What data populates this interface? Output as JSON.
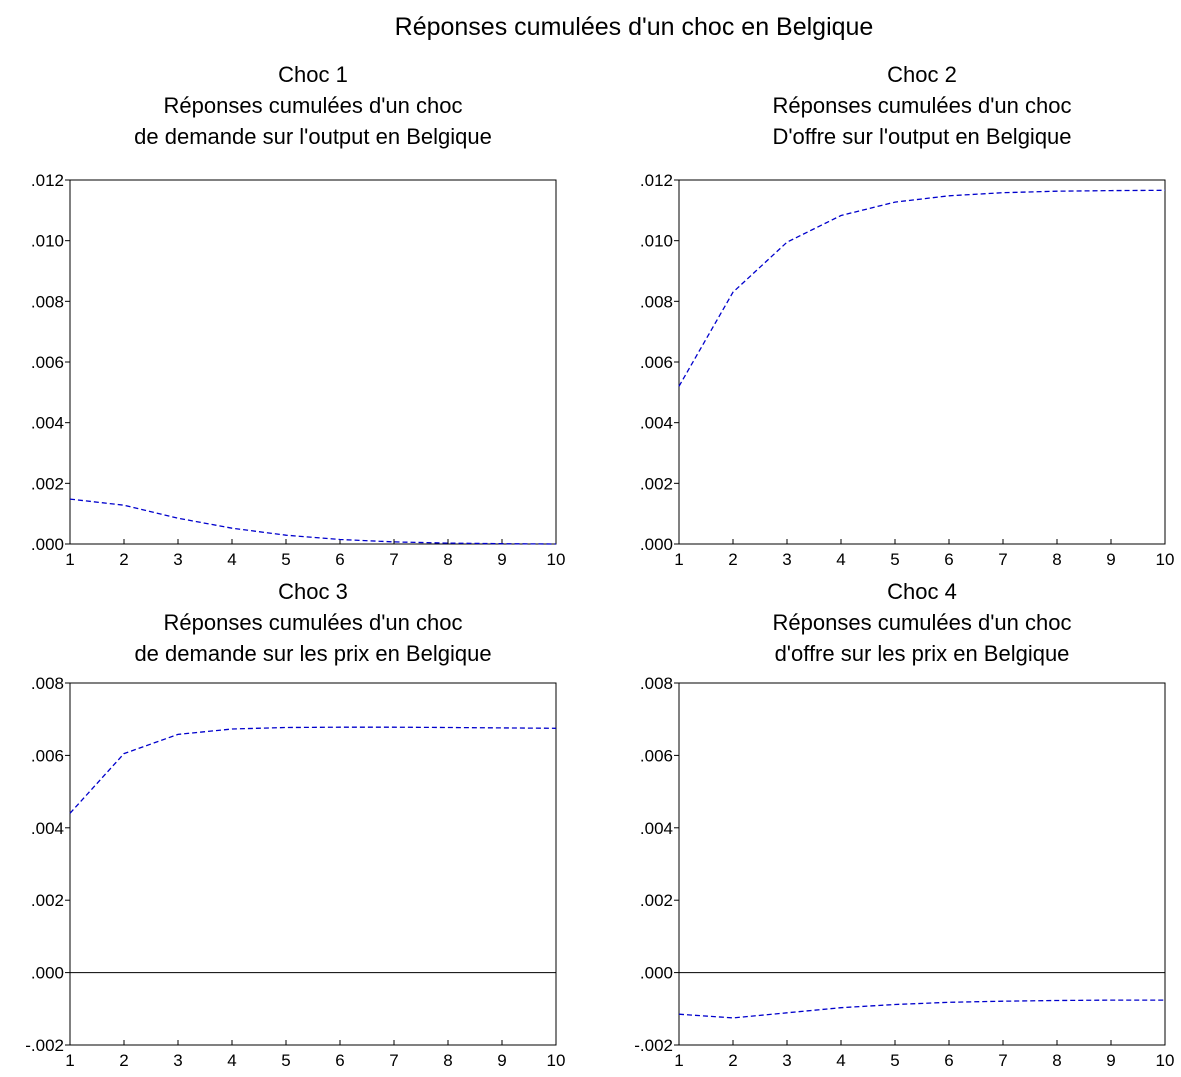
{
  "figure": {
    "title": "Réponses cumulées d'un choc en Belgique"
  },
  "chart_data": [
    {
      "type": "line",
      "title_lines": [
        "Choc 1",
        "Réponses cumulées d'un choc",
        "de demande sur l'output en Belgique"
      ],
      "x": [
        1,
        2,
        3,
        4,
        5,
        6,
        7,
        8,
        9,
        10
      ],
      "series": [
        {
          "values": [
            0.00148,
            0.00128,
            0.00085,
            0.00052,
            0.00029,
            0.00015,
            7e-05,
            3e-05,
            1e-05,
            0.0
          ],
          "color": "#0000cc",
          "style": "dashed"
        }
      ],
      "xlim": [
        1,
        10
      ],
      "ylim": [
        0.0,
        0.012
      ],
      "yticks": [
        0.0,
        0.002,
        0.004,
        0.006,
        0.008,
        0.01,
        0.012
      ],
      "ytick_labels": [
        ".000",
        ".002",
        ".004",
        ".006",
        ".008",
        ".010",
        ".012"
      ],
      "xtick_labels": [
        "1",
        "2",
        "3",
        "4",
        "5",
        "6",
        "7",
        "8",
        "9",
        "10"
      ],
      "zero_line": false,
      "grid": false
    },
    {
      "type": "line",
      "title_lines": [
        "Choc 2",
        "Réponses cumulées d'un choc",
        "D'offre sur l'output en Belgique"
      ],
      "x": [
        1,
        2,
        3,
        4,
        5,
        6,
        7,
        8,
        9,
        10
      ],
      "series": [
        {
          "values": [
            0.0052,
            0.0083,
            0.00995,
            0.01083,
            0.01127,
            0.01148,
            0.01158,
            0.01163,
            0.01165,
            0.01166
          ],
          "color": "#0000cc",
          "style": "dashed"
        }
      ],
      "xlim": [
        1,
        10
      ],
      "ylim": [
        0.0,
        0.012
      ],
      "yticks": [
        0.0,
        0.002,
        0.004,
        0.006,
        0.008,
        0.01,
        0.012
      ],
      "ytick_labels": [
        ".000",
        ".002",
        ".004",
        ".006",
        ".008",
        ".010",
        ".012"
      ],
      "xtick_labels": [
        "1",
        "2",
        "3",
        "4",
        "5",
        "6",
        "7",
        "8",
        "9",
        "10"
      ],
      "zero_line": false,
      "grid": false
    },
    {
      "type": "line",
      "title_lines": [
        "Choc 3",
        "Réponses cumulées d'un choc",
        "de demande sur les prix en Belgique"
      ],
      "x": [
        1,
        2,
        3,
        4,
        5,
        6,
        7,
        8,
        9,
        10
      ],
      "series": [
        {
          "values": [
            0.0044,
            0.00605,
            0.00658,
            0.00673,
            0.00677,
            0.00678,
            0.00678,
            0.00677,
            0.00676,
            0.00675
          ],
          "color": "#0000cc",
          "style": "dashed"
        }
      ],
      "xlim": [
        1,
        10
      ],
      "ylim": [
        -0.002,
        0.008
      ],
      "yticks": [
        -0.002,
        0.0,
        0.002,
        0.004,
        0.006,
        0.008
      ],
      "ytick_labels": [
        "-.002",
        ".000",
        ".002",
        ".004",
        ".006",
        ".008"
      ],
      "xtick_labels": [
        "1",
        "2",
        "3",
        "4",
        "5",
        "6",
        "7",
        "8",
        "9",
        "10"
      ],
      "zero_line": true,
      "grid": false
    },
    {
      "type": "line",
      "title_lines": [
        "Choc 4",
        "Réponses cumulées d'un choc",
        "d'offre sur les prix en Belgique"
      ],
      "x": [
        1,
        2,
        3,
        4,
        5,
        6,
        7,
        8,
        9,
        10
      ],
      "series": [
        {
          "values": [
            -0.00115,
            -0.00125,
            -0.00111,
            -0.00097,
            -0.00088,
            -0.00082,
            -0.00079,
            -0.00077,
            -0.00076,
            -0.00076
          ],
          "color": "#0000cc",
          "style": "dashed"
        }
      ],
      "xlim": [
        1,
        10
      ],
      "ylim": [
        -0.002,
        0.008
      ],
      "yticks": [
        -0.002,
        0.0,
        0.002,
        0.004,
        0.006,
        0.008
      ],
      "ytick_labels": [
        "-.002",
        ".000",
        ".002",
        ".004",
        ".006",
        ".008"
      ],
      "xtick_labels": [
        "1",
        "2",
        "3",
        "4",
        "5",
        "6",
        "7",
        "8",
        "9",
        "10"
      ],
      "zero_line": true,
      "grid": false
    }
  ]
}
